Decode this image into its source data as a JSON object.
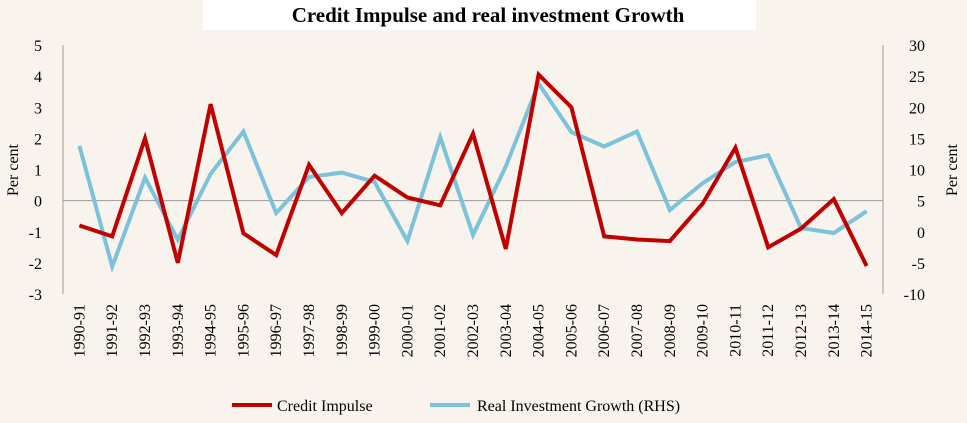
{
  "chart_data": {
    "type": "line",
    "title": "Credit Impulse and real investment Growth",
    "ylabel": "Per cent",
    "y2label": "Per cent",
    "ylim": [
      -3,
      5
    ],
    "y2lim": [
      -10,
      30
    ],
    "yticks": [
      "5",
      "4",
      "3",
      "2",
      "1",
      "0",
      "-1",
      "-2",
      "-3"
    ],
    "y2ticks": [
      "30",
      "25",
      "20",
      "15",
      "10",
      "5",
      "0",
      "-5",
      "-10"
    ],
    "categories": [
      "1990-91",
      "1991-92",
      "1992-93",
      "1993-94",
      "1994-95",
      "1995-96",
      "1996-97",
      "1997-98",
      "1998-99",
      "1999-00",
      "2000-01",
      "2001-02",
      "2002-03",
      "2003-04",
      "2004-05",
      "2005-06",
      "2006-07",
      "2007-08",
      "2008-09",
      "2009-10",
      "2010-11",
      "2011-12",
      "2012-13",
      "2013-14",
      "2014-15"
    ],
    "series": [
      {
        "name": "Credit Impulse",
        "axis": "left",
        "color": "#c00000",
        "values": [
          -0.8,
          -1.15,
          2.0,
          -2.0,
          3.1,
          -1.05,
          -1.75,
          1.15,
          -0.4,
          0.8,
          0.1,
          -0.15,
          2.15,
          -1.55,
          4.05,
          3.0,
          -1.15,
          -1.25,
          -1.3,
          -0.1,
          1.7,
          -1.5,
          -0.9,
          0.05,
          -2.1
        ]
      },
      {
        "name": "Real Investment Growth (RHS)",
        "axis": "right",
        "color": "#7cc2da",
        "values": [
          13.8,
          -5.6,
          8.7,
          -1.3,
          9.3,
          16.1,
          3.0,
          8.8,
          9.5,
          8.0,
          -1.5,
          15.2,
          -0.5,
          10.5,
          23.8,
          16.0,
          13.7,
          16.1,
          3.5,
          7.8,
          11.2,
          12.3,
          0.6,
          -0.2,
          3.3
        ]
      }
    ],
    "legend_position": "bottom",
    "grid": false
  }
}
